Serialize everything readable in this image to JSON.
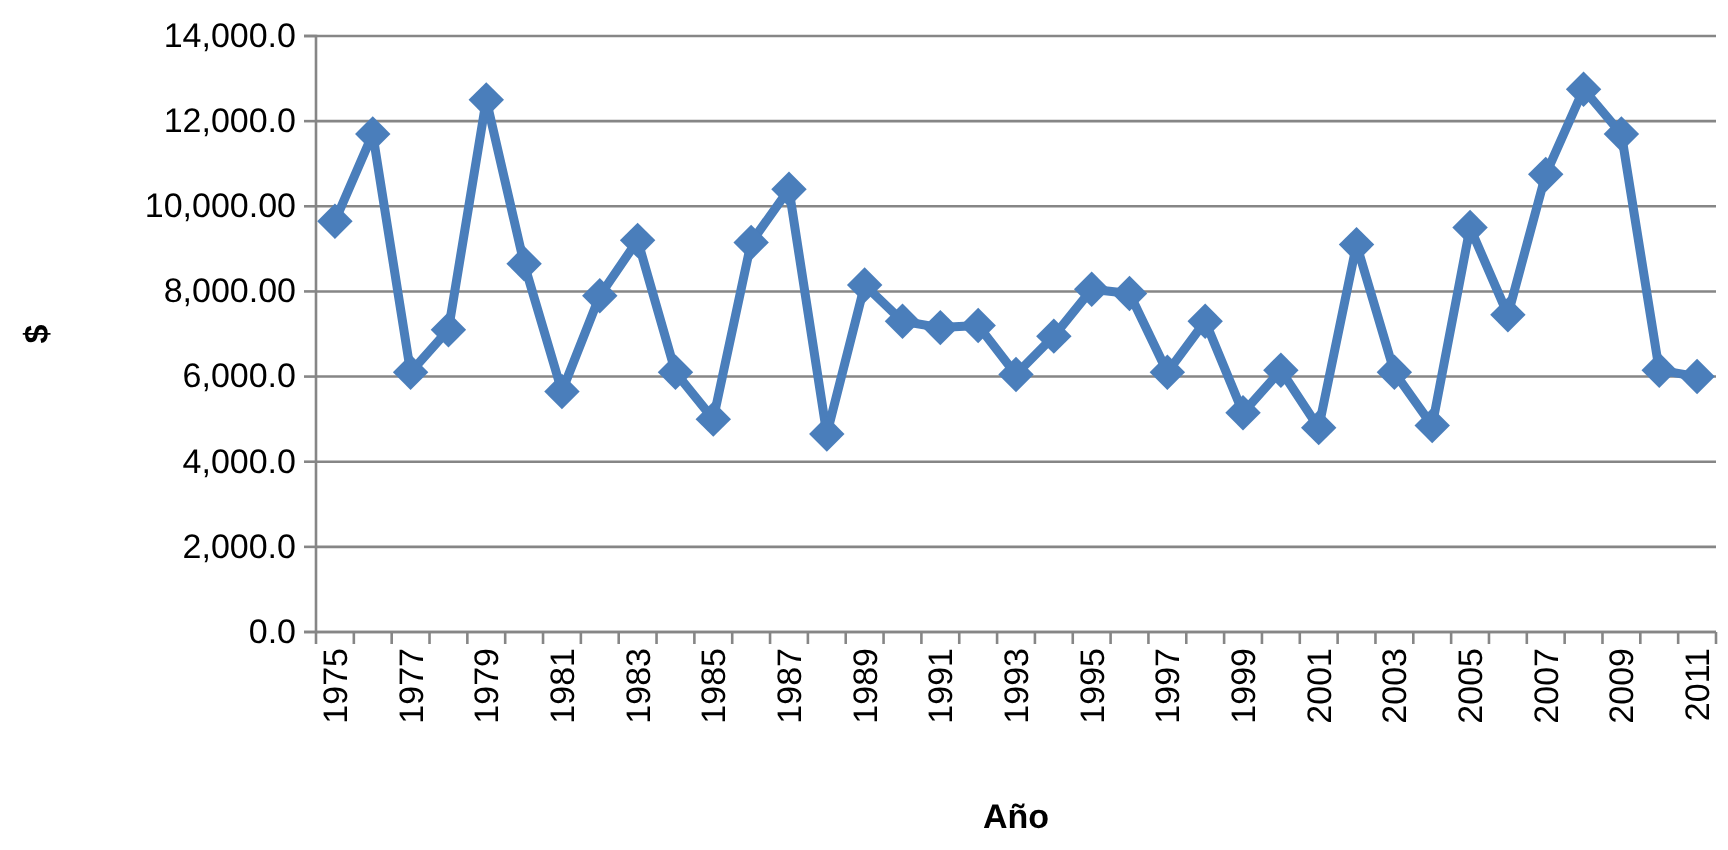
{
  "chart_data": {
    "type": "line",
    "xlabel": "Año",
    "ylabel": "$",
    "categories": [
      "1975",
      null,
      "1977",
      null,
      "1979",
      null,
      "1981",
      null,
      "1983",
      null,
      "1985",
      null,
      "1987",
      null,
      "1989",
      null,
      "1991",
      null,
      "1993",
      null,
      "1995",
      null,
      "1997",
      null,
      "1999",
      null,
      "2001",
      null,
      "2003",
      null,
      "2005",
      null,
      "2007",
      null,
      "2009",
      null,
      "2011"
    ],
    "series": [
      {
        "color": "#4a7ebb",
        "values": [
          9650,
          11700,
          6100,
          7100,
          12500,
          8650,
          5650,
          7900,
          9200,
          6100,
          5000,
          9150,
          10400,
          4650,
          8150,
          7300,
          7150,
          7200,
          6050,
          6950,
          8050,
          7950,
          6100,
          7300,
          5150,
          6150,
          4800,
          9100,
          6100,
          4850,
          9500,
          7450,
          10750,
          12750,
          11700,
          6150,
          6000
        ]
      }
    ],
    "ylim": [
      0,
      14000
    ],
    "yticks": [
      {
        "value": 0,
        "label": "0.0"
      },
      {
        "value": 2000,
        "label": "2,000.0"
      },
      {
        "value": 4000,
        "label": "4,000.0"
      },
      {
        "value": 6000,
        "label": "6,000.0"
      },
      {
        "value": 8000,
        "label": "8,000.00"
      },
      {
        "value": 10000,
        "label": "10,000.00"
      },
      {
        "value": 12000,
        "label": "12,000.0"
      },
      {
        "value": 14000,
        "label": "14,000.0"
      }
    ],
    "grid": "y",
    "legend": false,
    "marker": "diamond",
    "line_style": "solid"
  }
}
